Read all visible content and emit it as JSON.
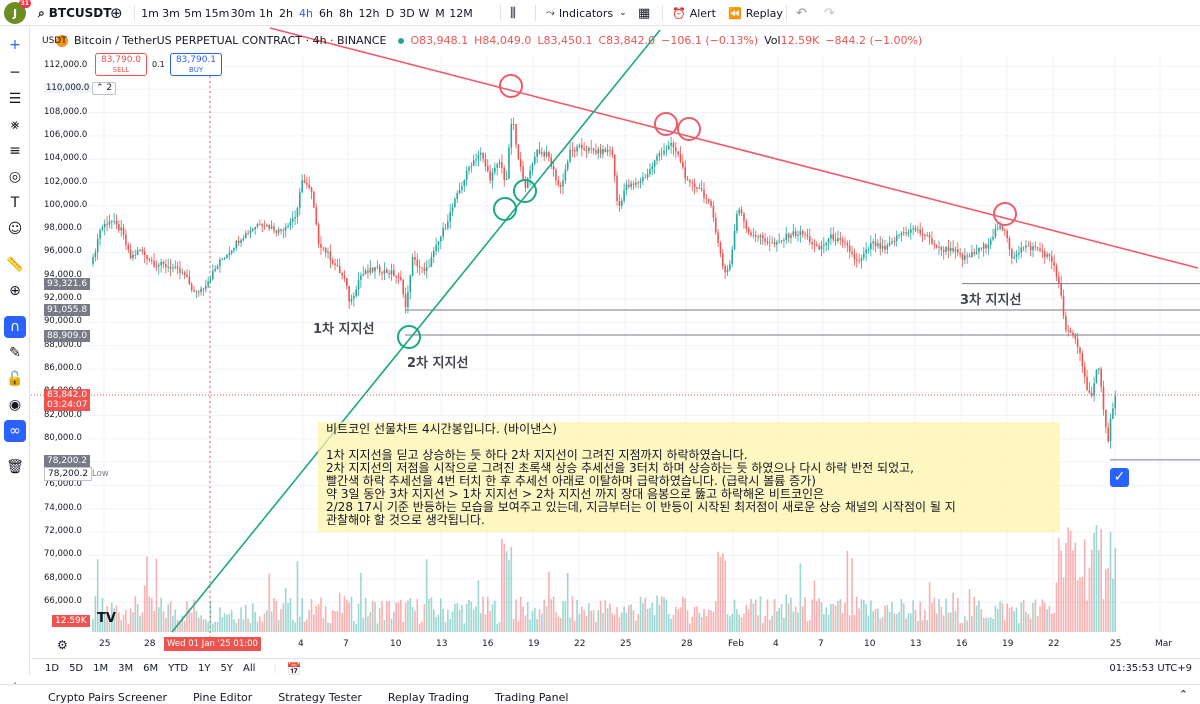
{
  "header": {
    "avatar_letter": "J",
    "notification_count": "31",
    "symbol": "BTCUSDT",
    "intervals": [
      "1m",
      "3m",
      "5m",
      "15m",
      "30m",
      "1h",
      "2h",
      "4h",
      "6h",
      "8h",
      "12h",
      "D",
      "3D",
      "W",
      "M",
      "12M"
    ],
    "active_interval": "4h",
    "indicators_label": "Indicators",
    "alert_label": "Alert",
    "replay_label": "Replay"
  },
  "legend": {
    "currency": "USDT",
    "title": "Bitcoin / TetherUS PERPETUAL CONTRACT · 4h · BINANCE",
    "open": "O83,948.1",
    "high": "H84,049.0",
    "low": "L83,450.1",
    "close": "C83,842.0",
    "change": "−106.1 (−0.13%)",
    "vol_label": "Vol",
    "vol": "12.59K",
    "vol_change": "−844.2 (−1.00%)",
    "sell_price": "83,790.0",
    "sell_label": "SELL",
    "spread": "0.1",
    "buy_price": "83,790.1",
    "buy_label": "BUY",
    "collapse_count": "2"
  },
  "price_axis": {
    "labels": [
      "112,000.0",
      "110,000.0",
      "108,000.0",
      "106,000.0",
      "104,000.0",
      "102,000.0",
      "100,000.0",
      "98,000.0",
      "96,000.0",
      "94,000.0",
      "92,000.0",
      "90,000.0",
      "88,000.0",
      "86,000.0",
      "84,000.0",
      "82,000.0",
      "80,000.0",
      "78,000.0",
      "76,000.0",
      "74,000.0",
      "72,000.0",
      "70,000.0",
      "68,000.0",
      "66,000.0"
    ],
    "level_1": "93,321.6",
    "level_2": "91,055.8",
    "level_3": "88,909.0",
    "current_price": "83,842.0",
    "countdown": "03:24:07",
    "low_1": "78,200.2",
    "low_2": "78,200.2",
    "low_label": "Low",
    "volume_badge": "12.59K"
  },
  "time_axis": {
    "labels": [
      "25",
      "28",
      "4",
      "7",
      "10",
      "13",
      "16",
      "19",
      "22",
      "25",
      "28",
      "Feb",
      "4",
      "7",
      "10",
      "13",
      "16",
      "19",
      "22",
      "25",
      "Mar",
      "4"
    ],
    "crosshair_date": "Wed 01 Jan '25  01:00"
  },
  "annotations": {
    "support_1": "1차 지지선",
    "support_2": "2차 지지선",
    "support_3": "3차 지지선",
    "note_lines": [
      "비트코인 선물차트 4시간봉입니다. (바이낸스)",
      "",
      "1차 지지선을 딛고 상승하는 듯 하다 2차 지지선이 그려진 지점까지 하락하였습니다.",
      "2차 지지선의 저점을 시작으로 그려진 초록색 상승 추세선을 3터치 하며 상승하는 듯 하였으나 다시 하락 반전 되었고,",
      "빨간색 하락 추세선을 4번 터치 한 후 추세선 아래로 이탈하며 급락하였습니다. (급락시 볼륨 증가)",
      "약 3일 동안 3차 지지선 > 1차 지지선 > 2차 지지선 까지 장대 음봉으로 뚫고 하락해온 비트코인은",
      "2/28 17시 기준 반등하는 모습을 보여주고 있는데, 지금부터는 이 반등이 시작된 최저점이 새로운 상승 채널의 시작점이 될 지",
      "관찰해야 할 것으로 생각됩니다."
    ]
  },
  "range_bar": {
    "ranges": [
      "1D",
      "5D",
      "1M",
      "3M",
      "6M",
      "YTD",
      "1Y",
      "5Y",
      "All"
    ],
    "clock": "01:35:53 UTC+9"
  },
  "bottom_tabs": [
    "Crypto Pairs Screener",
    "Pine Editor",
    "Strategy Tester",
    "Replay Trading",
    "Trading Panel"
  ],
  "colors": {
    "up": "#26a69a",
    "down": "#ef5350",
    "trend_down": "#f05a6a",
    "trend_up": "#1aa882",
    "accent": "#2962ff"
  }
}
